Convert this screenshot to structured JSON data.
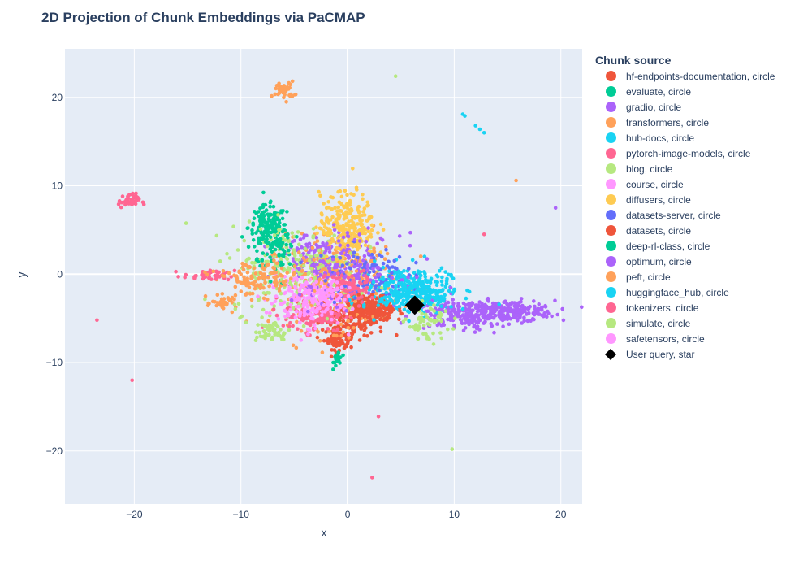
{
  "chart_data": {
    "type": "scatter",
    "title": "2D Projection of Chunk Embeddings via PaCMAP",
    "xlabel": "x",
    "ylabel": "y",
    "xlim": [
      -26.5,
      22
    ],
    "ylim": [
      -26,
      25.5
    ],
    "x_ticks": [
      -20,
      -10,
      0,
      10,
      20
    ],
    "y_ticks": [
      -20,
      -10,
      0,
      10,
      20
    ],
    "x_tick_labels": [
      "−20",
      "−10",
      "0",
      "10",
      "20"
    ],
    "y_tick_labels": [
      "−20",
      "−10",
      "0",
      "10",
      "20"
    ],
    "grid": true,
    "legend_title": "Chunk source",
    "legend_position": "right",
    "background_color": "#e5ecf6",
    "series": [
      {
        "name": "hf-endpoints-documentation, circle",
        "color": "#EF553B",
        "symbol": "circle",
        "clusters": [
          {
            "cx": 0.5,
            "cy": -4.5,
            "sx": 1.5,
            "sy": 1.2,
            "n": 220
          },
          {
            "cx": -0.8,
            "cy": -7.3,
            "sx": 0.7,
            "sy": 0.6,
            "n": 80
          }
        ],
        "outliers": []
      },
      {
        "name": "evaluate, circle",
        "color": "#00CC96",
        "symbol": "circle",
        "clusters": [
          {
            "cx": -7.5,
            "cy": 5.3,
            "sx": 0.9,
            "sy": 1.2,
            "n": 140
          },
          {
            "cx": -0.9,
            "cy": -9.5,
            "sx": 0.2,
            "sy": 0.5,
            "n": 25
          }
        ],
        "outliers": []
      },
      {
        "name": "gradio, circle",
        "color": "#AB63FA",
        "symbol": "circle",
        "clusters": [
          {
            "cx": 15,
            "cy": -4.2,
            "sx": 2.2,
            "sy": 0.6,
            "n": 240
          },
          {
            "cx": -2.5,
            "cy": 1.5,
            "sx": 2.0,
            "sy": 1.5,
            "n": 180
          }
        ],
        "outliers": [
          {
            "x": 19.5,
            "y": 7.5
          }
        ]
      },
      {
        "name": "transformers, circle",
        "color": "#FFA15A",
        "symbol": "circle",
        "clusters": [
          {
            "cx": -6.0,
            "cy": 20.8,
            "sx": 0.5,
            "sy": 0.5,
            "n": 45
          },
          {
            "cx": -1.0,
            "cy": -1.0,
            "sx": 3.0,
            "sy": 2.5,
            "n": 320
          },
          {
            "cx": -11.5,
            "cy": -3.3,
            "sx": 0.6,
            "sy": 0.4,
            "n": 40
          }
        ],
        "outliers": [
          {
            "x": 15.8,
            "y": 10.6
          }
        ]
      },
      {
        "name": "hub-docs, circle",
        "color": "#19D3F3",
        "symbol": "circle",
        "clusters": [
          {
            "cx": 5.5,
            "cy": -1.5,
            "sx": 2.0,
            "sy": 1.2,
            "n": 220
          }
        ],
        "outliers": [
          {
            "x": 10.8,
            "y": 18.1
          },
          {
            "x": 11.0,
            "y": 17.9
          },
          {
            "x": 12.0,
            "y": 16.8
          },
          {
            "x": 12.4,
            "y": 16.4
          },
          {
            "x": 12.8,
            "y": 16.0
          }
        ]
      },
      {
        "name": "pytorch-image-models, circle",
        "color": "#FF6692",
        "symbol": "circle",
        "clusters": [
          {
            "cx": -20.5,
            "cy": 8.3,
            "sx": 0.5,
            "sy": 0.4,
            "n": 45
          },
          {
            "cx": -13.0,
            "cy": -0.2,
            "sx": 1.2,
            "sy": 0.3,
            "n": 40
          },
          {
            "cx": -3.0,
            "cy": -4.5,
            "sx": 1.5,
            "sy": 1.0,
            "n": 140
          }
        ],
        "outliers": [
          {
            "x": -23.5,
            "y": -5.2
          },
          {
            "x": -20.2,
            "y": -12.0
          },
          {
            "x": 2.9,
            "y": -16.1
          },
          {
            "x": 2.3,
            "y": -23.0
          },
          {
            "x": 12.8,
            "y": 4.5
          }
        ]
      },
      {
        "name": "blog, circle",
        "color": "#B6E880",
        "symbol": "circle",
        "clusters": [
          {
            "cx": -5.0,
            "cy": 0.5,
            "sx": 3.0,
            "sy": 2.5,
            "n": 260
          },
          {
            "cx": -7.0,
            "cy": -6.5,
            "sx": 0.8,
            "sy": 0.6,
            "n": 50
          }
        ],
        "outliers": [
          {
            "x": 4.5,
            "y": 22.4
          },
          {
            "x": 9.8,
            "y": -19.8
          }
        ]
      },
      {
        "name": "course, circle",
        "color": "#FF97FF",
        "symbol": "circle",
        "clusters": [
          {
            "cx": -4.0,
            "cy": -3.0,
            "sx": 1.8,
            "sy": 1.5,
            "n": 180
          }
        ],
        "outliers": []
      },
      {
        "name": "diffusers, circle",
        "color": "#FECB52",
        "symbol": "circle",
        "clusters": [
          {
            "cx": 0.0,
            "cy": 5.5,
            "sx": 1.3,
            "sy": 1.8,
            "n": 260
          }
        ],
        "outliers": []
      },
      {
        "name": "datasets-server, circle",
        "color": "#636EFA",
        "symbol": "circle",
        "clusters": [
          {
            "cx": 1.5,
            "cy": 0.0,
            "sx": 2.0,
            "sy": 1.5,
            "n": 120
          }
        ],
        "outliers": []
      },
      {
        "name": "datasets, circle",
        "color": "#EF553B",
        "symbol": "circle",
        "clusters": [
          {
            "cx": 2.5,
            "cy": -4.0,
            "sx": 1.0,
            "sy": 0.8,
            "n": 150
          }
        ],
        "outliers": []
      },
      {
        "name": "deep-rl-class, circle",
        "color": "#00CC96",
        "symbol": "circle",
        "clusters": [
          {
            "cx": -6.5,
            "cy": 3.0,
            "sx": 1.0,
            "sy": 1.5,
            "n": 80
          }
        ],
        "outliers": []
      },
      {
        "name": "optimum, circle",
        "color": "#AB63FA",
        "symbol": "circle",
        "clusters": [
          {
            "cx": 10.5,
            "cy": -4.5,
            "sx": 2.0,
            "sy": 0.9,
            "n": 180
          },
          {
            "cx": 0.0,
            "cy": 0.5,
            "sx": 2.5,
            "sy": 2.0,
            "n": 120
          }
        ],
        "outliers": []
      },
      {
        "name": "peft, circle",
        "color": "#FFA15A",
        "symbol": "circle",
        "clusters": [
          {
            "cx": -8.5,
            "cy": -0.5,
            "sx": 2.0,
            "sy": 1.0,
            "n": 120
          }
        ],
        "outliers": []
      },
      {
        "name": "huggingface_hub, circle",
        "color": "#19D3F3",
        "symbol": "circle",
        "clusters": [
          {
            "cx": 6.5,
            "cy": -2.5,
            "sx": 1.8,
            "sy": 1.0,
            "n": 180
          }
        ],
        "outliers": []
      },
      {
        "name": "tokenizers, circle",
        "color": "#FF6692",
        "symbol": "circle",
        "clusters": [
          {
            "cx": 0.0,
            "cy": -1.5,
            "sx": 1.0,
            "sy": 1.0,
            "n": 70
          }
        ],
        "outliers": []
      },
      {
        "name": "simulate, circle",
        "color": "#B6E880",
        "symbol": "circle",
        "clusters": [
          {
            "cx": 7.5,
            "cy": -5.5,
            "sx": 1.0,
            "sy": 1.0,
            "n": 60
          }
        ],
        "outliers": []
      },
      {
        "name": "safetensors, circle",
        "color": "#FF97FF",
        "symbol": "circle",
        "clusters": [
          {
            "cx": -2.0,
            "cy": -2.5,
            "sx": 1.0,
            "sy": 0.8,
            "n": 60
          }
        ],
        "outliers": []
      },
      {
        "name": "User query, star",
        "color": "#000000",
        "symbol": "diamond",
        "clusters": [],
        "outliers": [
          {
            "x": 6.3,
            "y": -3.5
          }
        ]
      }
    ]
  }
}
